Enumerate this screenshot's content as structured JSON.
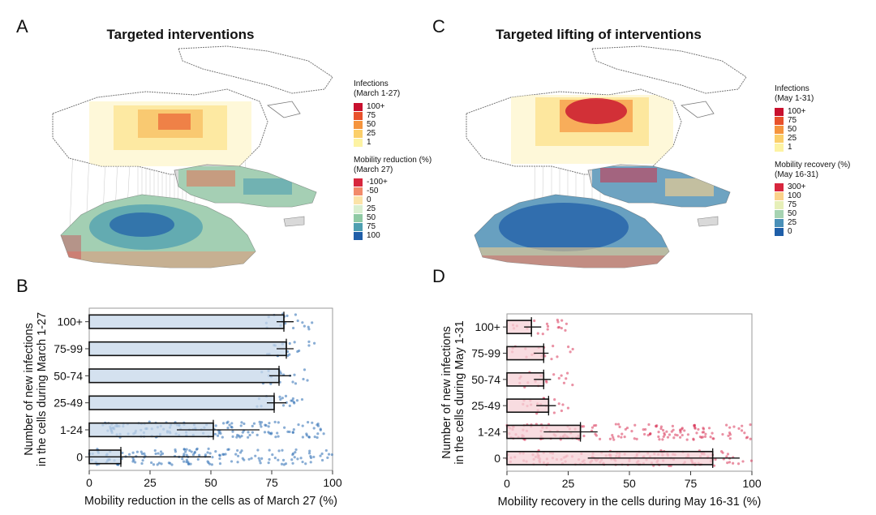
{
  "panels": {
    "A": "A",
    "B": "B",
    "C": "C",
    "D": "D"
  },
  "map_A": {
    "title": "Targeted interventions",
    "legend_infections": {
      "title_line1": "Infections",
      "title_line2": "(March 1-27)",
      "items": [
        {
          "label": "100+",
          "color": "#c8102e"
        },
        {
          "label": "75",
          "color": "#e8512b"
        },
        {
          "label": "50",
          "color": "#f5943d"
        },
        {
          "label": "25",
          "color": "#fbcf6a"
        },
        {
          "label": "1",
          "color": "#fdf3a3"
        }
      ]
    },
    "legend_mobility": {
      "title_line1": "Mobility reduction (%)",
      "title_line2": "(March 27)",
      "items": [
        {
          "label": "-100+",
          "color": "#d7263d"
        },
        {
          "label": "-50",
          "color": "#f28a6a"
        },
        {
          "label": "0",
          "color": "#fbe3a8"
        },
        {
          "label": "25",
          "color": "#d9efd0"
        },
        {
          "label": "50",
          "color": "#8fcaa4"
        },
        {
          "label": "75",
          "color": "#4e9fb0"
        },
        {
          "label": "100",
          "color": "#1f5ea8"
        }
      ]
    }
  },
  "map_C": {
    "title": "Targeted lifting of interventions",
    "legend_infections": {
      "title_line1": "Infections",
      "title_line2": "(May 1-31)",
      "items": [
        {
          "label": "100+",
          "color": "#c8102e"
        },
        {
          "label": "75",
          "color": "#e8512b"
        },
        {
          "label": "50",
          "color": "#f5943d"
        },
        {
          "label": "25",
          "color": "#fbcf6a"
        },
        {
          "label": "1",
          "color": "#fdf3a3"
        }
      ]
    },
    "legend_mobility": {
      "title_line1": "Mobility recovery (%)",
      "title_line2": "(May 16-31)",
      "items": [
        {
          "label": "300+",
          "color": "#d7263d"
        },
        {
          "label": "100",
          "color": "#fbd28a"
        },
        {
          "label": "75",
          "color": "#e6efb8"
        },
        {
          "label": "50",
          "color": "#a6d3b2"
        },
        {
          "label": "25",
          "color": "#4a90b8"
        },
        {
          "label": "0",
          "color": "#1f5ea8"
        }
      ]
    }
  },
  "chart_data": [
    {
      "type": "bar",
      "panel": "B",
      "orientation": "horizontal",
      "categories": [
        "0",
        "1-24",
        "25-49",
        "50-74",
        "75-99",
        "100+"
      ],
      "values": [
        13,
        51,
        76,
        78,
        81,
        80
      ],
      "error_low": [
        0,
        36,
        73,
        74,
        77,
        77
      ],
      "error_high": [
        50,
        70,
        81,
        83,
        84,
        84
      ],
      "xlim": [
        0,
        100
      ],
      "xticks": [
        "0",
        "25",
        "50",
        "75",
        "100"
      ],
      "xlabel": "Mobility reduction in the cells as of March 27 (%)",
      "ylabel_line1": "Number of new infections",
      "ylabel_line2": "in the cells during March 1-27",
      "bar_color": "#c6d7ea",
      "point_color": "#2a6bb3",
      "grid": false
    },
    {
      "type": "bar",
      "panel": "D",
      "orientation": "horizontal",
      "categories": [
        "0",
        "1-24",
        "25-49",
        "50-74",
        "75-99",
        "100+"
      ],
      "values": [
        84,
        30,
        17,
        15,
        15,
        10
      ],
      "error_low": [
        33,
        15,
        12,
        11,
        11,
        7
      ],
      "error_high": [
        95,
        37,
        20,
        18,
        17,
        14
      ],
      "xlim": [
        0,
        100
      ],
      "xticks": [
        "0",
        "25",
        "50",
        "75",
        "100"
      ],
      "xlabel": "Mobility recovery in the cells during May 16-31 (%)",
      "ylabel_line1": "Number of new infections",
      "ylabel_line2": "in the cells during May 1-31",
      "bar_color": "#f6d0d6",
      "point_color": "#d9365a",
      "grid": false
    }
  ]
}
